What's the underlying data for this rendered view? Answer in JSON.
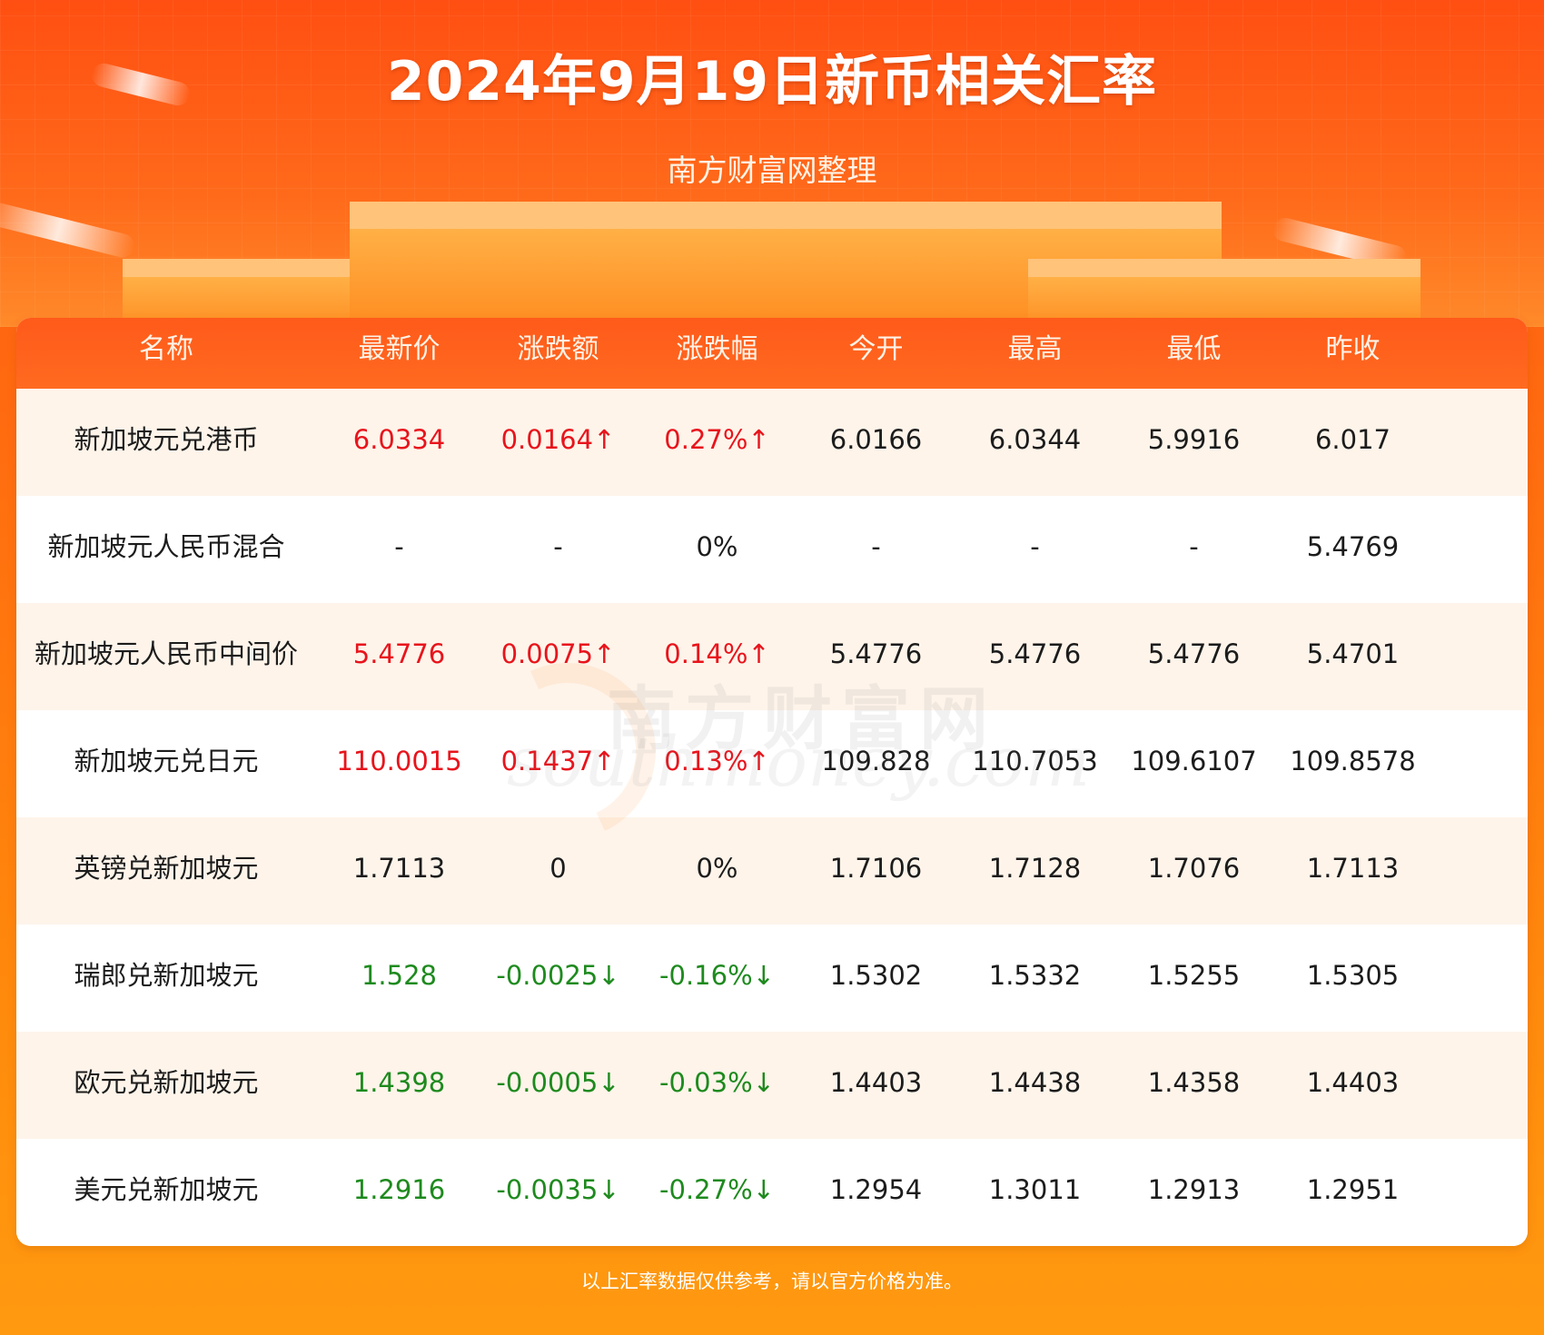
{
  "header": {
    "title": "2024年9月19日新币相关汇率",
    "subtitle": "南方财富网整理"
  },
  "table": {
    "columns": [
      "名称",
      "最新价",
      "涨跌额",
      "涨跌幅",
      "今开",
      "最高",
      "最低",
      "昨收"
    ],
    "rows": [
      {
        "trend": "up",
        "cells": [
          "新加坡元兑港币",
          "6.0334",
          "0.0164↑",
          "0.27%↑",
          "6.0166",
          "6.0344",
          "5.9916",
          "6.017"
        ]
      },
      {
        "trend": "flat",
        "cells": [
          "新加坡元人民币混合",
          "-",
          "-",
          "0%",
          "-",
          "-",
          "-",
          "5.4769"
        ]
      },
      {
        "trend": "up",
        "cells": [
          "新加坡元人民币中间价",
          "5.4776",
          "0.0075↑",
          "0.14%↑",
          "5.4776",
          "5.4776",
          "5.4776",
          "5.4701"
        ]
      },
      {
        "trend": "up",
        "cells": [
          "新加坡元兑日元",
          "110.0015",
          "0.1437↑",
          "0.13%↑",
          "109.828",
          "110.7053",
          "109.6107",
          "109.8578"
        ]
      },
      {
        "trend": "flat",
        "cells": [
          "英镑兑新加坡元",
          "1.7113",
          "0",
          "0%",
          "1.7106",
          "1.7128",
          "1.7076",
          "1.7113"
        ]
      },
      {
        "trend": "down",
        "cells": [
          "瑞郎兑新加坡元",
          "1.528",
          "-0.0025↓",
          "-0.16%↓",
          "1.5302",
          "1.5332",
          "1.5255",
          "1.5305"
        ]
      },
      {
        "trend": "down",
        "cells": [
          "欧元兑新加坡元",
          "1.4398",
          "-0.0005↓",
          "-0.03%↓",
          "1.4403",
          "1.4438",
          "1.4358",
          "1.4403"
        ]
      },
      {
        "trend": "down",
        "cells": [
          "美元兑新加坡元",
          "1.2916",
          "-0.0035↓",
          "-0.27%↓",
          "1.2954",
          "1.3011",
          "1.2913",
          "1.2951"
        ]
      }
    ]
  },
  "watermark": {
    "cn": "南方财富网",
    "en": "southmoney.com"
  },
  "footer": {
    "note": "以上汇率数据仅供参考，请以官方价格为准。"
  },
  "colors": {
    "up": "#e8141c",
    "down": "#1e8a1e",
    "header_bg": "#ff5a1a",
    "accent": "#ff6a10"
  }
}
